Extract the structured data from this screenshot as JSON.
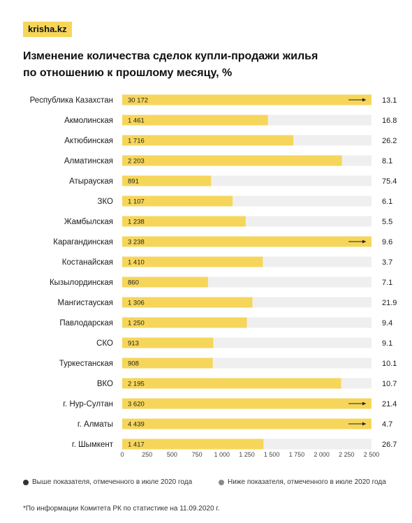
{
  "logo": "krisha.kz",
  "title_line1": "Изменение количества сделок купли-продажи жилья",
  "title_line2": "по отношению к прошлому месяцу, %",
  "legend": {
    "above": "Выше показателя, отмеченного в июле 2020 года",
    "below": "Ниже показателя, отмеченного в июле 2020 года"
  },
  "footnote": "*По информации Комитета РК по статистике на 11.09.2020 г.",
  "colors": {
    "bar": "#f6d65a",
    "track": "#efefef",
    "above_dot": "#333333",
    "below_dot": "#8a8a8a"
  },
  "chart_data": {
    "type": "bar",
    "orientation": "horizontal",
    "categories": [
      "Республика Казахстан",
      "Акмолинская",
      "Актюбинская",
      "Алматинская",
      "Атырауская",
      "ЗКО",
      "Жамбылская",
      "Карагандинская",
      "Костанайская",
      "Кызылординская",
      "Мангистауская",
      "Павлодарская",
      "СКО",
      "Туркестанская",
      "ВКО",
      "г. Нур-Султан",
      "г. Алматы",
      "г. Шымкент"
    ],
    "values": [
      30172,
      1461,
      1716,
      2203,
      891,
      1107,
      1238,
      3238,
      1410,
      860,
      1306,
      1250,
      913,
      908,
      2195,
      3620,
      4439,
      1417
    ],
    "value_labels": [
      "30 172",
      "1 461",
      "1 716",
      "2 203",
      "891",
      "1 107",
      "1 238",
      "3 238",
      "1 410",
      "860",
      "1 306",
      "1 250",
      "913",
      "908",
      "2 195",
      "3 620",
      "4 439",
      "1 417"
    ],
    "change_pct": [
      "13.1",
      "16.8",
      "26.2",
      "8.1",
      "75.4",
      "6.1",
      "5.5",
      "9.6",
      "3.7",
      "7.1",
      "21.9",
      "9.4",
      "9.1",
      "10.1",
      "10.7",
      "21.4",
      "4.7",
      "26.7"
    ],
    "xlim": [
      0,
      2500
    ],
    "xticks": [
      0,
      250,
      500,
      750,
      1000,
      1250,
      1500,
      1750,
      2000,
      2250,
      2500
    ],
    "xtick_labels": [
      "0",
      "250",
      "500",
      "750",
      "1 000",
      "1 250",
      "1 500",
      "1 750",
      "2 000",
      "2 250",
      "2 500"
    ],
    "legend_position": "bottom"
  }
}
